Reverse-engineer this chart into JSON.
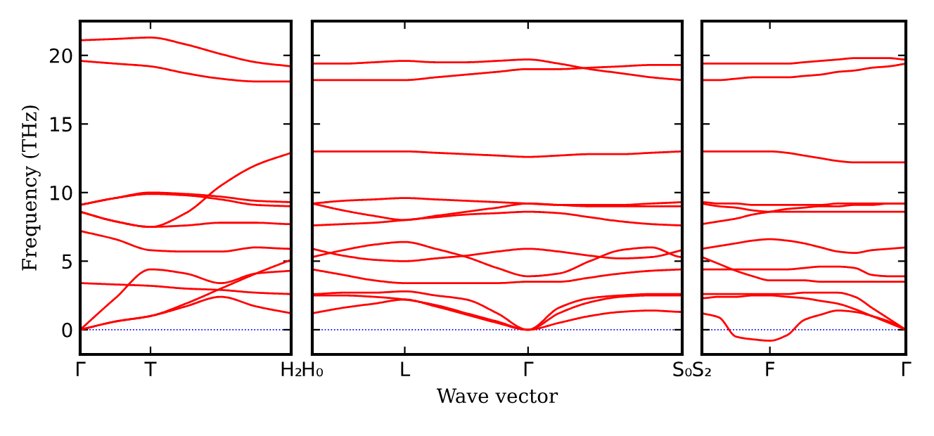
{
  "chart_data": [
    {
      "type": "line",
      "ylabel": "Frequency (THz)",
      "categories": [
        "Γ",
        null,
        "T",
        null,
        null,
        null,
        "H₂"
      ],
      "ylim": [
        -1.8,
        22.5
      ],
      "yticks": [
        0,
        5,
        10,
        15,
        20
      ],
      "grid": false,
      "marker": "none",
      "line_style": "solid",
      "ref_lines": [
        {
          "axis": "y",
          "value": 0,
          "color": "#0000ff",
          "line_style": "dotted"
        }
      ],
      "series": [
        {
          "color": "#ff0000",
          "values": [
            21.1,
            21.2,
            21.3,
            20.8,
            20.1,
            19.5,
            19.2
          ]
        },
        {
          "color": "#ff0000",
          "values": [
            19.6,
            19.4,
            19.2,
            18.7,
            18.3,
            18.1,
            18.1
          ]
        },
        {
          "color": "#ff0000",
          "values": [
            9.1,
            9.6,
            10.0,
            9.9,
            9.7,
            9.4,
            9.3
          ]
        },
        {
          "color": "#ff0000",
          "values": [
            9.1,
            9.6,
            9.9,
            9.8,
            9.5,
            9.1,
            9.0
          ]
        },
        {
          "color": "#ff0000",
          "values": [
            8.6,
            7.9,
            7.5,
            8.5,
            10.5,
            12.0,
            12.9
          ]
        },
        {
          "color": "#ff0000",
          "values": [
            8.6,
            7.9,
            7.5,
            7.6,
            7.8,
            7.8,
            7.7
          ]
        },
        {
          "color": "#ff0000",
          "values": [
            7.2,
            6.6,
            5.8,
            5.7,
            5.7,
            6.0,
            5.9
          ]
        },
        {
          "color": "#ff0000",
          "values": [
            3.4,
            3.3,
            3.2,
            3.0,
            2.9,
            2.7,
            2.6
          ]
        },
        {
          "color": "#ff0000",
          "values": [
            0,
            2.3,
            4.4,
            4.1,
            3.4,
            4.1,
            4.3
          ]
        },
        {
          "color": "#ff0000",
          "values": [
            0,
            0.6,
            1.0,
            1.9,
            3.0,
            4.1,
            5.1
          ]
        },
        {
          "color": "#ff0000",
          "values": [
            0,
            0.6,
            1.0,
            1.7,
            2.4,
            1.7,
            1.2
          ]
        }
      ]
    },
    {
      "type": "line",
      "xlabel": "Wave vector",
      "categories": [
        "H₀",
        null,
        null,
        "L",
        null,
        null,
        null,
        "Γ",
        null,
        null,
        null,
        null,
        "S₀"
      ],
      "ylim": [
        -1.8,
        22.5
      ],
      "yticks": [
        0,
        5,
        10,
        15,
        20
      ],
      "tick_labels": "x",
      "grid": false,
      "marker": "none",
      "line_style": "solid",
      "ref_lines": [
        {
          "axis": "y",
          "value": 0,
          "color": "#0000ff",
          "line_style": "dotted"
        }
      ],
      "series": [
        {
          "color": "#ff0000",
          "values": [
            19.4,
            19.4,
            19.5,
            19.6,
            19.5,
            19.5,
            19.6,
            19.7,
            19.4,
            19.0,
            18.7,
            18.4,
            18.2
          ]
        },
        {
          "color": "#ff0000",
          "values": [
            18.2,
            18.2,
            18.2,
            18.2,
            18.4,
            18.6,
            18.8,
            19.0,
            19.0,
            19.1,
            19.2,
            19.3,
            19.3
          ]
        },
        {
          "color": "#ff0000",
          "values": [
            13.0,
            13.0,
            13.0,
            13.0,
            12.9,
            12.8,
            12.7,
            12.6,
            12.7,
            12.8,
            12.8,
            12.9,
            13.0
          ]
        },
        {
          "color": "#ff0000",
          "values": [
            9.2,
            9.4,
            9.5,
            9.6,
            9.5,
            9.4,
            9.3,
            9.2,
            9.1,
            9.1,
            9.1,
            9.2,
            9.3
          ]
        },
        {
          "color": "#ff0000",
          "values": [
            9.2,
            8.7,
            8.3,
            8.0,
            8.3,
            8.6,
            8.9,
            9.2,
            9.1,
            9.0,
            9.0,
            9.0,
            9.0
          ]
        },
        {
          "color": "#ff0000",
          "values": [
            7.6,
            7.7,
            7.8,
            8.0,
            8.2,
            8.4,
            8.5,
            8.6,
            8.5,
            8.2,
            7.9,
            7.7,
            7.6
          ]
        },
        {
          "color": "#ff0000",
          "values": [
            5.3,
            5.8,
            6.2,
            6.4,
            5.9,
            5.3,
            4.5,
            3.9,
            4.1,
            5.0,
            5.8,
            6.0,
            5.3
          ]
        },
        {
          "color": "#ff0000",
          "values": [
            5.9,
            5.4,
            5.1,
            5.0,
            5.2,
            5.4,
            5.7,
            5.9,
            5.7,
            5.4,
            5.2,
            5.3,
            5.8
          ]
        },
        {
          "color": "#ff0000",
          "values": [
            4.4,
            4.0,
            3.6,
            3.4,
            3.4,
            3.4,
            3.4,
            3.5,
            3.5,
            3.8,
            4.1,
            4.3,
            4.4
          ]
        },
        {
          "color": "#ff0000",
          "values": [
            2.6,
            2.7,
            2.7,
            2.8,
            2.5,
            2.2,
            1.2,
            0,
            0.5,
            1.0,
            1.3,
            1.4,
            1.3
          ]
        },
        {
          "color": "#ff0000",
          "values": [
            2.5,
            2.5,
            2.4,
            2.2,
            1.8,
            1.2,
            0.6,
            0,
            1.2,
            2.0,
            2.4,
            2.5,
            2.5
          ]
        },
        {
          "color": "#ff0000",
          "values": [
            1.2,
            1.6,
            1.9,
            2.2,
            1.7,
            1.1,
            0.5,
            0,
            1.6,
            2.3,
            2.5,
            2.6,
            2.6
          ]
        }
      ]
    },
    {
      "type": "line",
      "categories": [
        "S₂",
        null,
        null,
        null,
        "F",
        null,
        null,
        null,
        null,
        null,
        null,
        null,
        "Γ"
      ],
      "ylim": [
        -1.8,
        22.5
      ],
      "yticks": [
        0,
        5,
        10,
        15,
        20
      ],
      "tick_labels": "x",
      "grid": false,
      "marker": "none",
      "line_style": "solid",
      "ref_lines": [
        {
          "axis": "y",
          "value": 0,
          "color": "#0000ff",
          "line_style": "dotted"
        }
      ],
      "series": [
        {
          "color": "#ff0000",
          "values": [
            19.4,
            19.4,
            19.4,
            19.4,
            19.4,
            19.4,
            19.5,
            19.6,
            19.7,
            19.8,
            19.8,
            19.8,
            19.7
          ]
        },
        {
          "color": "#ff0000",
          "values": [
            18.2,
            18.2,
            18.3,
            18.4,
            18.4,
            18.4,
            18.5,
            18.6,
            18.8,
            18.9,
            19.1,
            19.2,
            19.4
          ]
        },
        {
          "color": "#ff0000",
          "values": [
            13.0,
            13.0,
            13.0,
            13.0,
            13.0,
            12.9,
            12.7,
            12.5,
            12.3,
            12.2,
            12.2,
            12.2,
            12.2
          ]
        },
        {
          "color": "#ff0000",
          "values": [
            9.3,
            9.2,
            9.2,
            9.1,
            9.1,
            9.1,
            9.1,
            9.1,
            9.2,
            9.2,
            9.2,
            9.2,
            9.2
          ]
        },
        {
          "color": "#ff0000",
          "values": [
            9.2,
            9.0,
            8.9,
            8.7,
            8.6,
            8.6,
            8.6,
            8.6,
            8.6,
            8.6,
            8.6,
            8.6,
            8.6
          ]
        },
        {
          "color": "#ff0000",
          "values": [
            7.7,
            7.9,
            8.1,
            8.4,
            8.6,
            8.8,
            8.9,
            9.0,
            9.0,
            9.1,
            9.1,
            9.2,
            9.2
          ]
        },
        {
          "color": "#ff0000",
          "values": [
            5.9,
            6.1,
            6.3,
            6.5,
            6.6,
            6.5,
            6.3,
            6.0,
            5.7,
            5.6,
            5.8,
            5.9,
            6.0
          ]
        },
        {
          "color": "#ff0000",
          "values": [
            5.3,
            4.8,
            4.3,
            3.9,
            3.6,
            3.6,
            3.6,
            3.5,
            3.5,
            3.5,
            3.5,
            3.5,
            3.5
          ]
        },
        {
          "color": "#ff0000",
          "values": [
            4.4,
            4.4,
            4.4,
            4.4,
            4.4,
            4.4,
            4.5,
            4.6,
            4.6,
            4.5,
            4.0,
            3.9,
            3.9
          ]
        },
        {
          "color": "#ff0000",
          "values": [
            2.6,
            2.6,
            2.6,
            2.6,
            2.6,
            2.6,
            2.7,
            2.7,
            2.7,
            2.4,
            1.6,
            0.8,
            0
          ]
        },
        {
          "color": "#ff0000",
          "values": [
            2.3,
            2.4,
            2.4,
            2.5,
            2.5,
            2.4,
            2.3,
            2.1,
            1.9,
            1.5,
            1.0,
            0.5,
            0
          ]
        },
        {
          "color": "#ff0000",
          "values": [
            1.2,
            0.9,
            -0.5,
            -0.7,
            -0.8,
            -0.4,
            0.7,
            1.1,
            1.4,
            1.3,
            1.0,
            0.6,
            0
          ]
        }
      ]
    }
  ]
}
